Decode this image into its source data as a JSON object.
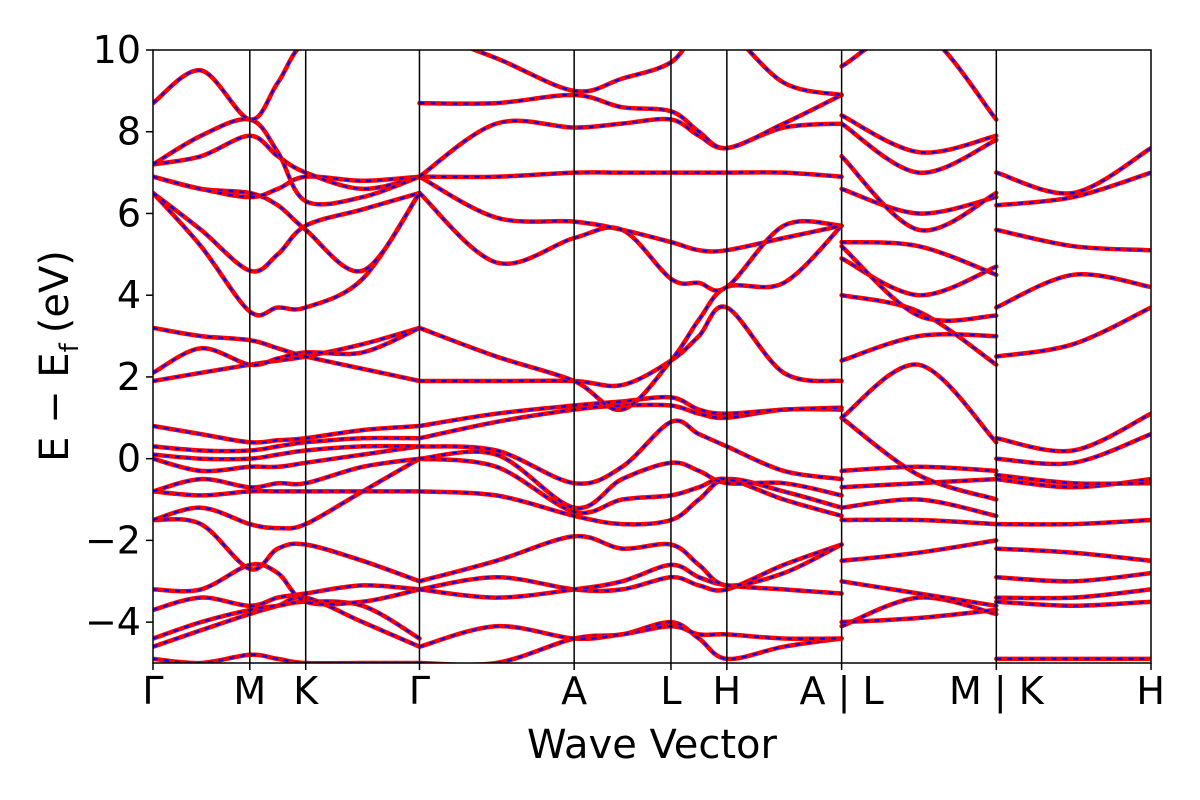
{
  "chart_data": {
    "type": "line",
    "title": "",
    "xlabel": "Wave Vector",
    "ylabel": {
      "main": "E − E",
      "subscript": "f",
      "unit": "(eV)"
    },
    "ylim": [
      -5,
      10
    ],
    "yticks": [
      -4,
      -2,
      0,
      2,
      4,
      6,
      8,
      10
    ],
    "ytick_labels": [
      "−4",
      "−2",
      "0",
      "2",
      "4",
      "6",
      "8",
      "10"
    ],
    "xlim": [
      0,
      100
    ],
    "kpoints": [
      {
        "label": "Γ",
        "x": 0
      },
      {
        "label": "M",
        "x": 9.7
      },
      {
        "label": "K",
        "x": 15.3
      },
      {
        "label": "Γ",
        "x": 26.7
      },
      {
        "label": "A",
        "x": 42.2
      },
      {
        "label": "L",
        "x": 51.9
      },
      {
        "label": "H",
        "x": 57.5
      },
      {
        "label": "A | L",
        "x": 69.0
      },
      {
        "label": "M | K",
        "x": 84.5
      },
      {
        "label": "H",
        "x": 100
      }
    ],
    "path_breaks": [
      69.0,
      84.5
    ],
    "colors": {
      "series_a": "#ff0000",
      "series_b": "#0000ff",
      "axis": "#000000"
    },
    "series": [
      {
        "line_style": "solid",
        "color": "#ff0000"
      },
      {
        "line_style": "dashed",
        "color": "#0000ff"
      }
    ],
    "segments": [
      {
        "x": [
          0,
          4.8,
          9.7,
          12.5,
          15.3,
          21.0,
          26.7
        ],
        "bands": [
          [
            -4.9,
            -5.0,
            -4.8,
            -4.9,
            -5.0,
            -5.0,
            -5.0
          ],
          [
            -4.6,
            -4.2,
            -3.8,
            -3.6,
            -3.4,
            -4.0,
            -4.6
          ],
          [
            -4.4,
            -4.0,
            -3.7,
            -3.6,
            -3.5,
            -3.6,
            -4.4
          ],
          [
            -3.7,
            -3.4,
            -3.6,
            -3.4,
            -3.3,
            -3.1,
            -3.2
          ],
          [
            -3.2,
            -3.2,
            -2.6,
            -2.8,
            -3.5,
            -3.5,
            -3.2
          ],
          [
            -1.5,
            -1.6,
            -2.7,
            -2.2,
            -2.1,
            -2.5,
            -3.0
          ],
          [
            -1.5,
            -1.2,
            -1.6,
            -1.7,
            -1.6,
            -0.8,
            0.0
          ],
          [
            -0.8,
            -0.9,
            -0.8,
            -0.8,
            -0.8,
            -0.8,
            -0.8
          ],
          [
            -0.8,
            -0.5,
            -0.7,
            -0.6,
            -0.6,
            -0.2,
            0.0
          ],
          [
            0.0,
            -0.3,
            -0.2,
            -0.2,
            -0.1,
            0.1,
            0.3
          ],
          [
            0.1,
            0.0,
            0.0,
            0.1,
            0.2,
            0.3,
            0.3
          ],
          [
            0.3,
            0.2,
            0.2,
            0.3,
            0.4,
            0.5,
            0.5
          ],
          [
            0.8,
            0.6,
            0.4,
            0.45,
            0.5,
            0.7,
            0.8
          ],
          [
            1.9,
            2.1,
            2.3,
            2.4,
            2.5,
            2.8,
            3.2
          ],
          [
            2.1,
            2.7,
            2.3,
            2.45,
            2.6,
            2.6,
            3.2
          ],
          [
            3.2,
            3.0,
            2.9,
            2.7,
            2.5,
            2.2,
            1.9
          ],
          [
            6.5,
            5.2,
            3.6,
            3.7,
            3.7,
            4.4,
            6.5
          ],
          [
            6.5,
            5.6,
            4.6,
            5.0,
            5.7,
            6.1,
            6.5
          ],
          [
            6.9,
            6.6,
            6.5,
            6.2,
            5.6,
            4.6,
            6.5
          ],
          [
            6.9,
            6.6,
            6.4,
            6.6,
            6.9,
            6.8,
            6.9
          ],
          [
            7.2,
            7.4,
            7.9,
            7.4,
            7.0,
            6.6,
            6.9
          ],
          [
            7.2,
            7.9,
            8.3,
            7.5,
            6.3,
            6.4,
            6.9
          ],
          [
            8.7,
            9.5,
            8.3,
            9.2,
            10.2,
            10.5,
            10.5
          ]
        ]
      },
      {
        "x": [
          26.7,
          34.4,
          42.2,
          47.0,
          51.9,
          54.7,
          57.5,
          63.2,
          69.0
        ],
        "bands": [
          [
            -5.0,
            -5.0,
            -4.4,
            -4.3,
            -4.0,
            -4.4,
            -4.9,
            -4.6,
            -4.4
          ],
          [
            -4.6,
            -4.1,
            -4.4,
            -4.3,
            -4.1,
            -4.3,
            -4.3,
            -4.4,
            -4.4
          ],
          [
            -3.2,
            -2.9,
            -3.2,
            -3.2,
            -2.9,
            -3.1,
            -3.2,
            -2.6,
            -2.1
          ],
          [
            -3.2,
            -3.4,
            -3.2,
            -3.0,
            -2.6,
            -2.9,
            -3.1,
            -3.2,
            -3.3
          ],
          [
            -3.0,
            -2.5,
            -1.9,
            -2.2,
            -2.1,
            -2.6,
            -3.1,
            -2.8,
            -2.1
          ],
          [
            -0.8,
            -0.9,
            -1.4,
            -1.6,
            -1.5,
            -1.0,
            -0.5,
            -0.8,
            -1.2
          ],
          [
            0.0,
            -0.2,
            -1.3,
            -1.0,
            -0.9,
            -0.7,
            -0.5,
            -1.0,
            -1.4
          ],
          [
            0.0,
            0.1,
            -1.2,
            -0.5,
            -0.1,
            -0.3,
            -0.6,
            -0.6,
            -0.9
          ],
          [
            0.3,
            0.2,
            -0.6,
            -0.2,
            0.9,
            0.6,
            0.3,
            -0.3,
            -0.5
          ],
          [
            0.5,
            0.9,
            1.2,
            1.3,
            1.3,
            1.1,
            1.0,
            1.2,
            1.2
          ],
          [
            0.8,
            1.1,
            1.3,
            1.4,
            1.5,
            1.2,
            1.1,
            1.2,
            1.25
          ],
          [
            1.9,
            1.9,
            1.9,
            1.8,
            2.4,
            3.0,
            3.7,
            2.1,
            1.9
          ],
          [
            3.2,
            2.5,
            1.9,
            1.2,
            2.4,
            3.4,
            4.2,
            4.3,
            5.7
          ],
          [
            6.5,
            4.8,
            5.4,
            5.6,
            4.4,
            4.3,
            4.2,
            5.7,
            5.7
          ],
          [
            6.9,
            5.9,
            5.8,
            5.6,
            5.3,
            5.1,
            5.1,
            5.4,
            5.7
          ],
          [
            6.9,
            6.9,
            7.0,
            7.0,
            7.0,
            7.0,
            7.0,
            7.0,
            6.9
          ],
          [
            6.9,
            8.2,
            8.1,
            8.2,
            8.3,
            7.9,
            7.6,
            8.1,
            8.2
          ],
          [
            8.7,
            8.7,
            8.9,
            8.6,
            8.5,
            8.0,
            7.6,
            8.2,
            8.9
          ],
          [
            10.5,
            9.8,
            9.0,
            9.3,
            9.7,
            10.5,
            10.5,
            9.2,
            8.9
          ]
        ]
      },
      {
        "x": [
          69.0,
          76.7,
          84.5
        ],
        "bands": [
          [
            -4.1,
            -3.4,
            -3.8
          ],
          [
            -4.0,
            -3.9,
            -3.7
          ],
          [
            -3.0,
            -3.3,
            -3.6
          ],
          [
            -2.5,
            -2.3,
            -2.0
          ],
          [
            -1.5,
            -1.5,
            -1.6
          ],
          [
            -1.2,
            -1.0,
            -1.4
          ],
          [
            -0.7,
            -0.6,
            -0.5
          ],
          [
            -0.3,
            -0.2,
            -0.3
          ],
          [
            1.0,
            -0.4,
            -1.0
          ],
          [
            1.0,
            2.3,
            0.4
          ],
          [
            2.4,
            3.0,
            3.0
          ],
          [
            4.0,
            3.6,
            2.3
          ],
          [
            4.9,
            4.0,
            4.7
          ],
          [
            5.2,
            3.5,
            3.5
          ],
          [
            5.3,
            5.2,
            4.5
          ],
          [
            6.6,
            6.0,
            6.4
          ],
          [
            7.4,
            5.6,
            6.5
          ],
          [
            8.2,
            7.0,
            7.8
          ],
          [
            8.4,
            7.5,
            7.9
          ],
          [
            9.6,
            10.5,
            8.3
          ]
        ]
      },
      {
        "x": [
          84.5,
          92.2,
          100
        ],
        "bands": [
          [
            -4.9,
            -4.9,
            -4.9
          ],
          [
            -3.5,
            -3.6,
            -3.5
          ],
          [
            -3.4,
            -3.4,
            -3.2
          ],
          [
            -2.9,
            -3.0,
            -2.8
          ],
          [
            -2.2,
            -2.3,
            -2.5
          ],
          [
            -1.6,
            -1.6,
            -1.5
          ],
          [
            -0.5,
            -0.7,
            -0.5
          ],
          [
            -0.4,
            -0.6,
            -0.6
          ],
          [
            0.0,
            -0.1,
            0.6
          ],
          [
            0.5,
            0.2,
            1.1
          ],
          [
            2.5,
            2.8,
            3.7
          ],
          [
            3.7,
            4.5,
            4.2
          ],
          [
            5.6,
            5.2,
            5.1
          ],
          [
            6.2,
            6.4,
            7.0
          ],
          [
            7.0,
            6.5,
            7.6
          ]
        ]
      }
    ]
  }
}
